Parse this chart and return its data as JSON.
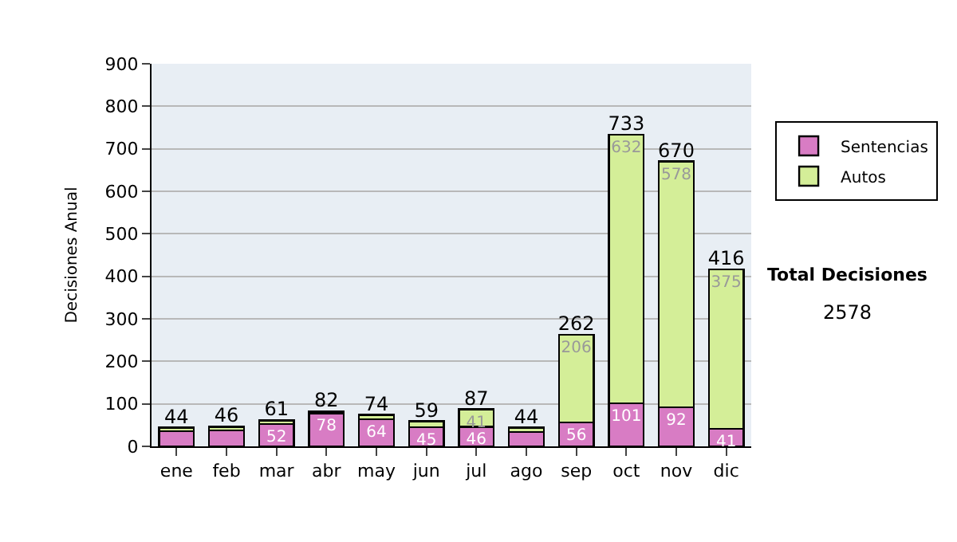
{
  "chart_data": {
    "type": "bar",
    "stacked": true,
    "ylabel": "Decisiones Anual",
    "categories": [
      "ene",
      "feb",
      "mar",
      "abr",
      "may",
      "jun",
      "jul",
      "ago",
      "sep",
      "oct",
      "nov",
      "dic"
    ],
    "series": [
      {
        "name": "Sentencias",
        "color": "#d87cc4",
        "values": [
          36,
          37,
          52,
          78,
          64,
          45,
          46,
          34,
          56,
          101,
          92,
          41
        ],
        "value_labels": [
          null,
          null,
          "52",
          "78",
          "64",
          "45",
          "46",
          null,
          "56",
          "101",
          "92",
          "41"
        ]
      },
      {
        "name": "Autos",
        "color": "#d4ee98",
        "values": [
          8,
          9,
          9,
          4,
          10,
          14,
          41,
          10,
          206,
          632,
          578,
          375
        ],
        "value_labels": [
          null,
          null,
          null,
          null,
          null,
          null,
          "41",
          null,
          "206",
          "632",
          "578",
          "375"
        ]
      }
    ],
    "totals": [
      "44",
      "46",
      "61",
      "82",
      "74",
      "59",
      "87",
      "44",
      "262",
      "733",
      "670",
      "416"
    ],
    "ylim": [
      0,
      900
    ],
    "yticks": [
      0,
      100,
      200,
      300,
      400,
      500,
      600,
      700,
      800,
      900
    ],
    "grid": "y",
    "legend": "right",
    "annotations": [
      "Total Decisiones",
      "2578"
    ]
  }
}
